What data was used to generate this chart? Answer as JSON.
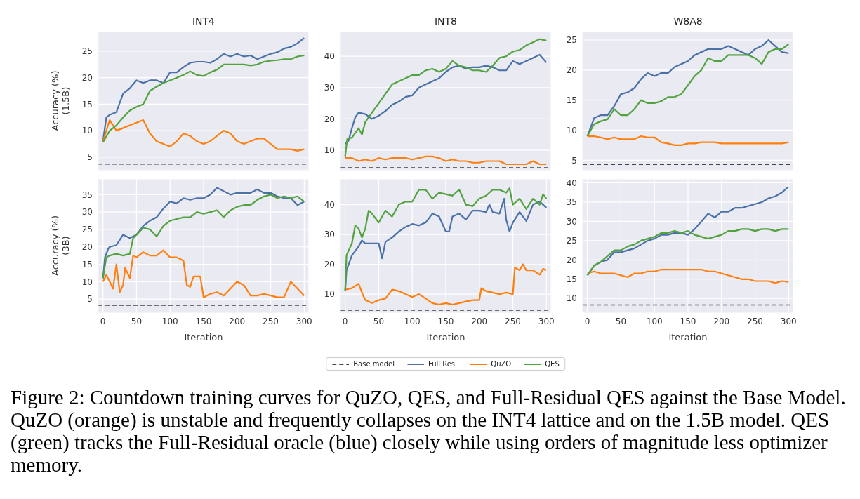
{
  "chart_data": [
    {
      "type": "line",
      "title": "INT4",
      "ylabel": "Accuracy (%)\n(1.5B)",
      "xlim": [
        -7,
        307
      ],
      "xticks": [
        0,
        50,
        100,
        150,
        200,
        250,
        300
      ],
      "ylim": [
        2.6,
        28.7
      ],
      "yticks": [
        5,
        10,
        15,
        20,
        25
      ],
      "grid": true,
      "tick_labels": "y",
      "x": [
        0,
        10,
        20,
        30,
        40,
        50,
        60,
        70,
        80,
        90,
        100,
        110,
        120,
        130,
        140,
        150,
        160,
        170,
        180,
        190,
        200,
        210,
        220,
        230,
        240,
        250,
        260,
        270,
        280,
        290,
        300
      ],
      "ref_lines": [
        {
          "axis": "y",
          "value": 3.7,
          "color": "#444444",
          "line_style": "dashed"
        }
      ],
      "series": [
        {
          "color": "#4a72a8",
          "x": [
            0,
            5,
            10,
            20,
            30,
            40,
            50,
            60,
            70,
            80,
            90,
            100,
            110,
            120,
            130,
            140,
            150,
            160,
            170,
            180,
            190,
            200,
            210,
            220,
            230,
            240,
            250,
            260,
            270,
            280,
            290,
            300
          ],
          "values": [
            8,
            12.5,
            13,
            13.5,
            17,
            18,
            19.5,
            19,
            19.5,
            19.5,
            19,
            21,
            21,
            22,
            22.8,
            23,
            23,
            22.8,
            23.5,
            24.5,
            24,
            24.5,
            24,
            24.2,
            23.5,
            24,
            24.5,
            24.8,
            25.5,
            25.8,
            26.5,
            27.5
          ]
        },
        {
          "color": "#ff7f0e",
          "x": [
            0,
            5,
            10,
            20,
            30,
            40,
            50,
            60,
            70,
            80,
            90,
            100,
            110,
            120,
            130,
            140,
            150,
            160,
            170,
            180,
            190,
            200,
            210,
            220,
            230,
            240,
            250,
            260,
            270,
            280,
            290,
            300
          ],
          "values": [
            8,
            10,
            12,
            10,
            10.5,
            11,
            11.5,
            12,
            9.5,
            8,
            7.5,
            7,
            8,
            9.5,
            9,
            8,
            7.5,
            8,
            9,
            10,
            9.5,
            8,
            7.5,
            8,
            8.5,
            8.5,
            7.5,
            6.5,
            6.5,
            6.5,
            6.2,
            6.5
          ]
        },
        {
          "color": "#52a340",
          "values": [
            7.8,
            10,
            11,
            12.5,
            13.8,
            14.5,
            15,
            17.5,
            18.3,
            19,
            19.5,
            20,
            20.5,
            21.2,
            20.5,
            20.3,
            21,
            21.5,
            22.5,
            22.5,
            22.5,
            22.5,
            22.3,
            22.5,
            23,
            23.2,
            23.3,
            23.5,
            23.5,
            24,
            24.2
          ]
        }
      ]
    },
    {
      "type": "line",
      "title": "INT8",
      "xlim": [
        -7,
        307
      ],
      "xticks": [
        0,
        50,
        100,
        150,
        200,
        250,
        300
      ],
      "ylim": [
        3.7,
        47.9
      ],
      "yticks": [
        10,
        20,
        30,
        40
      ],
      "grid": true,
      "tick_labels": "y",
      "x": [
        0,
        10,
        20,
        30,
        40,
        50,
        60,
        70,
        80,
        90,
        100,
        110,
        120,
        130,
        140,
        150,
        160,
        170,
        180,
        190,
        200,
        210,
        220,
        230,
        240,
        250,
        260,
        270,
        280,
        290,
        300
      ],
      "ref_lines": [
        {
          "axis": "y",
          "value": 4.4,
          "color": "#444444",
          "line_style": "dashed"
        }
      ],
      "series": [
        {
          "color": "#4a72a8",
          "x": [
            0,
            5,
            10,
            15,
            20,
            30,
            40,
            50,
            60,
            70,
            80,
            90,
            100,
            110,
            120,
            130,
            140,
            150,
            160,
            170,
            180,
            190,
            200,
            210,
            220,
            230,
            240,
            250,
            260,
            270,
            280,
            290,
            300
          ],
          "values": [
            12,
            13,
            17,
            20.5,
            22,
            21.5,
            20,
            21,
            22.5,
            24.5,
            25.5,
            27,
            27.5,
            30,
            31,
            32,
            33,
            35,
            36.5,
            37,
            36,
            36.5,
            36.5,
            37,
            36.5,
            35.5,
            35.5,
            38.5,
            37.5,
            38.5,
            39.5,
            40.5,
            38
          ]
        },
        {
          "color": "#ff7f0e",
          "values": [
            7.5,
            7.5,
            6.5,
            7,
            6.5,
            7.5,
            7,
            7.5,
            7.5,
            7.5,
            7,
            7.5,
            8,
            8,
            7.5,
            6.5,
            7,
            6.5,
            6.5,
            6,
            6,
            6.5,
            6.5,
            6.5,
            5.5,
            5.5,
            5.5,
            5.5,
            6.5,
            5.5,
            5.5
          ]
        },
        {
          "color": "#52a340",
          "x": [
            0,
            3,
            10,
            20,
            25,
            30,
            40,
            50,
            60,
            70,
            80,
            90,
            100,
            110,
            120,
            130,
            140,
            150,
            160,
            170,
            180,
            190,
            200,
            210,
            220,
            230,
            240,
            250,
            260,
            270,
            280,
            290,
            300
          ],
          "values": [
            8,
            13.5,
            14,
            17,
            15,
            19,
            22,
            25,
            28,
            31,
            32,
            33,
            34,
            34,
            35.5,
            36,
            35,
            36,
            38.5,
            37,
            36.5,
            35.5,
            35.5,
            35,
            37,
            39.5,
            40,
            41.5,
            42,
            43.5,
            44.5,
            45.5,
            45
          ]
        }
      ]
    },
    {
      "type": "line",
      "title": "W8A8",
      "xlim": [
        -7,
        307
      ],
      "xticks": [
        0,
        50,
        100,
        150,
        200,
        250,
        300
      ],
      "ylim": [
        3.4,
        26.4
      ],
      "yticks": [
        5,
        10,
        15,
        20,
        25
      ],
      "grid": true,
      "tick_labels": "y",
      "x": [
        0,
        10,
        20,
        30,
        40,
        50,
        60,
        70,
        80,
        90,
        100,
        110,
        120,
        130,
        140,
        150,
        160,
        170,
        180,
        190,
        200,
        210,
        220,
        230,
        240,
        250,
        260,
        270,
        280,
        290,
        300
      ],
      "ref_lines": [
        {
          "axis": "y",
          "value": 4.3,
          "color": "#444444",
          "line_style": "dashed"
        }
      ],
      "series": [
        {
          "color": "#4a72a8",
          "values": [
            9,
            12,
            12.5,
            12.5,
            14,
            16,
            16.3,
            17,
            18.5,
            19.5,
            19,
            19.5,
            19.5,
            20.5,
            21,
            21.5,
            22.5,
            23,
            23.5,
            23.5,
            23.5,
            24,
            23.5,
            23,
            22.5,
            23.5,
            24,
            25,
            24,
            23,
            22.8
          ]
        },
        {
          "color": "#ff7f0e",
          "values": [
            9,
            9,
            8.8,
            8.5,
            8.8,
            8.5,
            8.5,
            8.5,
            9,
            8.8,
            8.8,
            8,
            7.8,
            7.5,
            7.5,
            7.8,
            7.8,
            8,
            8,
            8,
            7.8,
            7.8,
            7.8,
            7.8,
            7.8,
            7.8,
            7.8,
            7.8,
            7.8,
            7.8,
            8
          ]
        },
        {
          "color": "#52a340",
          "values": [
            9,
            11,
            11.5,
            11.8,
            13.5,
            12.5,
            12.5,
            13.5,
            15,
            14.5,
            14.5,
            14.8,
            15.5,
            15.5,
            16,
            17.5,
            19,
            20,
            22,
            21.5,
            21.5,
            22.5,
            22.5,
            22.5,
            22.5,
            22,
            21,
            23,
            23.5,
            23.5,
            24.3
          ]
        }
      ]
    },
    {
      "type": "line",
      "xlabel": "Iteration",
      "ylabel": "Accuracy (%)\n(3B)",
      "xlim": [
        -7,
        307
      ],
      "xticks": [
        0,
        50,
        100,
        150,
        200,
        250,
        300
      ],
      "ylim": [
        1.2,
        39.5
      ],
      "yticks": [
        5,
        10,
        15,
        20,
        25,
        30,
        35
      ],
      "grid": true,
      "ref_lines": [
        {
          "axis": "y",
          "value": 3.2,
          "color": "#444444",
          "line_style": "dashed"
        }
      ],
      "series": [
        {
          "color": "#4a72a8",
          "x": [
            0,
            3,
            8,
            10,
            20,
            30,
            40,
            50,
            60,
            70,
            80,
            90,
            100,
            110,
            120,
            130,
            140,
            150,
            160,
            170,
            180,
            190,
            200,
            210,
            220,
            230,
            240,
            250,
            260,
            270,
            280,
            290,
            300
          ],
          "values": [
            11,
            17,
            19.5,
            20,
            20.5,
            23.5,
            22.5,
            23.5,
            26,
            27.5,
            28.5,
            31,
            33,
            32.5,
            34,
            33.5,
            34,
            34,
            35,
            37,
            36,
            35,
            35.5,
            35.5,
            35.5,
            36.5,
            35.5,
            35.5,
            34.5,
            34,
            34,
            32,
            33
          ]
        },
        {
          "color": "#ff7f0e",
          "x": [
            0,
            5,
            10,
            15,
            20,
            25,
            30,
            33,
            40,
            45,
            50,
            60,
            70,
            80,
            90,
            100,
            110,
            120,
            125,
            130,
            135,
            145,
            150,
            160,
            170,
            180,
            190,
            200,
            210,
            220,
            230,
            240,
            250,
            260,
            270,
            280,
            290,
            300
          ],
          "values": [
            10,
            12,
            10,
            8,
            15,
            7,
            9,
            14,
            11,
            17.5,
            17,
            18.5,
            17.5,
            17.5,
            19,
            17,
            17,
            16,
            9,
            8.5,
            11.5,
            11.5,
            5.5,
            6.5,
            7,
            6,
            8,
            10,
            9,
            6,
            6,
            6.5,
            6,
            5.5,
            5.5,
            10,
            8,
            6
          ]
        },
        {
          "color": "#52a340",
          "x": [
            0,
            5,
            10,
            20,
            30,
            40,
            45,
            50,
            60,
            70,
            80,
            90,
            100,
            110,
            120,
            130,
            140,
            150,
            160,
            170,
            180,
            190,
            200,
            210,
            220,
            230,
            240,
            250,
            260,
            270,
            280,
            290,
            300
          ],
          "values": [
            11,
            17,
            17.5,
            18,
            17.5,
            18,
            22.5,
            23.5,
            25.5,
            25,
            23,
            26,
            27.5,
            28,
            28.5,
            28.5,
            30,
            29.5,
            30,
            30.5,
            28.5,
            30.5,
            31.5,
            32,
            32,
            33.5,
            34.5,
            35,
            34,
            34.5,
            34,
            34.5,
            33
          ]
        }
      ]
    },
    {
      "type": "line",
      "xlabel": "Iteration",
      "xlim": [
        -7,
        307
      ],
      "xticks": [
        0,
        50,
        100,
        150,
        200,
        250,
        300
      ],
      "ylim": [
        3.9,
        48.6
      ],
      "yticks": [
        10,
        20,
        30,
        40
      ],
      "grid": true,
      "legend": "bottom",
      "ref_lines": [
        {
          "axis": "y",
          "value": 4.6,
          "label": "Base model",
          "color": "#444444",
          "line_style": "dashed"
        }
      ],
      "series": [
        {
          "name": "Full Res.",
          "color": "#4a72a8",
          "x": [
            0,
            2,
            10,
            20,
            25,
            30,
            40,
            50,
            55,
            60,
            70,
            80,
            90,
            100,
            110,
            120,
            130,
            140,
            150,
            155,
            160,
            170,
            180,
            190,
            200,
            210,
            215,
            220,
            230,
            237,
            240,
            245,
            250,
            260,
            270,
            280,
            290,
            300
          ],
          "values": [
            11,
            18,
            23,
            26,
            28,
            27,
            27,
            27,
            22,
            27.5,
            29,
            31,
            32.5,
            33.5,
            33,
            34,
            37,
            36,
            31,
            31,
            36,
            37,
            35,
            38,
            38,
            37.5,
            40,
            37.5,
            37,
            42,
            35,
            31,
            34,
            37.5,
            34.5,
            40,
            41,
            39
          ]
        },
        {
          "name": "QuZO",
          "color": "#ff7f0e",
          "x": [
            0,
            10,
            20,
            25,
            30,
            40,
            50,
            60,
            70,
            80,
            90,
            100,
            110,
            120,
            130,
            140,
            150,
            160,
            170,
            180,
            190,
            200,
            203,
            210,
            220,
            230,
            240,
            250,
            253,
            260,
            265,
            270,
            280,
            290,
            295,
            300
          ],
          "values": [
            11.5,
            12,
            13.5,
            10.5,
            8,
            7,
            8,
            8.5,
            11.5,
            11,
            10,
            9,
            10,
            8.5,
            7,
            6.5,
            7,
            6.5,
            7,
            7.5,
            8,
            8,
            12,
            11,
            10.5,
            10,
            10.5,
            10,
            19,
            18,
            20,
            18,
            18,
            16.5,
            18.5,
            18
          ]
        },
        {
          "name": "QES",
          "color": "#52a340",
          "x": [
            0,
            2,
            10,
            15,
            20,
            25,
            30,
            35,
            40,
            50,
            60,
            70,
            80,
            90,
            100,
            110,
            120,
            130,
            140,
            150,
            160,
            170,
            180,
            190,
            200,
            210,
            220,
            230,
            240,
            245,
            250,
            260,
            270,
            280,
            290,
            295,
            300
          ],
          "values": [
            11,
            23,
            27,
            33,
            32,
            29,
            32,
            38,
            37,
            34,
            38,
            36,
            40,
            41,
            41,
            45,
            45,
            42,
            44,
            43.5,
            43,
            45,
            40,
            39.5,
            42,
            43,
            45,
            45,
            44,
            45.5,
            40,
            42,
            38.5,
            42,
            40,
            43.5,
            42
          ]
        }
      ],
      "annotations": [
        "Figure 2: Countdown training curves for QuZO, QES, and Full-Residual QES against the Base Model. QuZO (orange) is unstable and frequently collapses on the INT4 lattice and on the 1.5B model. QES (green) tracks the Full-Residual oracle (blue) closely while using orders of magnitude less optimizer memory."
      ]
    },
    {
      "type": "line",
      "xlabel": "Iteration",
      "xlim": [
        -7,
        307
      ],
      "xticks": [
        0,
        50,
        100,
        150,
        200,
        250,
        300
      ],
      "ylim": [
        6.4,
        41
      ],
      "yticks": [
        10,
        15,
        20,
        25,
        30,
        35,
        40
      ],
      "grid": true,
      "x": [
        0,
        10,
        20,
        30,
        40,
        50,
        60,
        70,
        80,
        90,
        100,
        110,
        120,
        130,
        140,
        150,
        160,
        170,
        180,
        190,
        200,
        210,
        220,
        230,
        240,
        250,
        260,
        270,
        280,
        290,
        300
      ],
      "ref_lines": [
        {
          "axis": "y",
          "value": 8.3,
          "color": "#444444",
          "line_style": "dashed"
        }
      ],
      "series": [
        {
          "color": "#4a72a8",
          "values": [
            16,
            18.5,
            19.5,
            20,
            22,
            22,
            22.5,
            23,
            24,
            25,
            25.5,
            26.5,
            26.5,
            27,
            27,
            26.5,
            28,
            30,
            32,
            31,
            32.5,
            32.5,
            33.5,
            33.5,
            34,
            34.5,
            35,
            36,
            36.5,
            37.5,
            39
          ]
        },
        {
          "color": "#ff7f0e",
          "values": [
            16.5,
            17,
            16.5,
            16.5,
            16.5,
            16,
            15.5,
            16.5,
            16.5,
            17,
            17,
            17.5,
            17.5,
            17.5,
            17.5,
            17.5,
            17.5,
            17.5,
            17,
            17,
            16.5,
            16,
            15.5,
            15,
            15,
            14.5,
            14.5,
            14.5,
            14,
            14.5,
            14.3
          ]
        },
        {
          "color": "#52a340",
          "values": [
            16,
            18.5,
            19.5,
            21,
            22.5,
            22.5,
            23.5,
            24,
            25,
            25.5,
            26,
            27,
            27,
            27.5,
            27,
            27.5,
            26.5,
            26,
            25.5,
            26,
            26.5,
            27.5,
            27.5,
            28,
            28,
            27.5,
            28,
            28,
            27.5,
            28,
            28
          ]
        }
      ]
    }
  ]
}
